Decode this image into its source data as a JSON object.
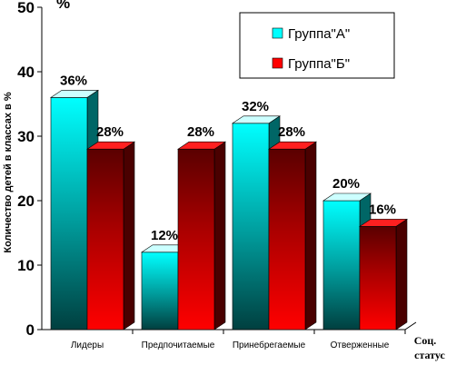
{
  "chart_data": {
    "type": "bar",
    "title": "",
    "ylabel": "Количество детей в классах в %",
    "ylabel_unit": "%",
    "xlabel_line1": "Соц.",
    "xlabel_line2": "статус",
    "ylim": [
      0,
      50
    ],
    "yticks": [
      "0",
      "10",
      "20",
      "30",
      "40",
      "50"
    ],
    "categories": [
      "Лидеры",
      "Предпочитаемые",
      "Принебрегаемые",
      "Отверженные"
    ],
    "legend_position": "top-right",
    "series": [
      {
        "name": "Группа\"А\"",
        "values": [
          36,
          12,
          32,
          20
        ],
        "labels": [
          "36%",
          "12%",
          "32%",
          "20%"
        ],
        "color": "#00ffff"
      },
      {
        "name": "Группа\"Б\"",
        "values": [
          28,
          28,
          28,
          16
        ],
        "labels": [
          "28%",
          "28%",
          "28%",
          "16%"
        ],
        "color": "#ff0000"
      }
    ]
  }
}
